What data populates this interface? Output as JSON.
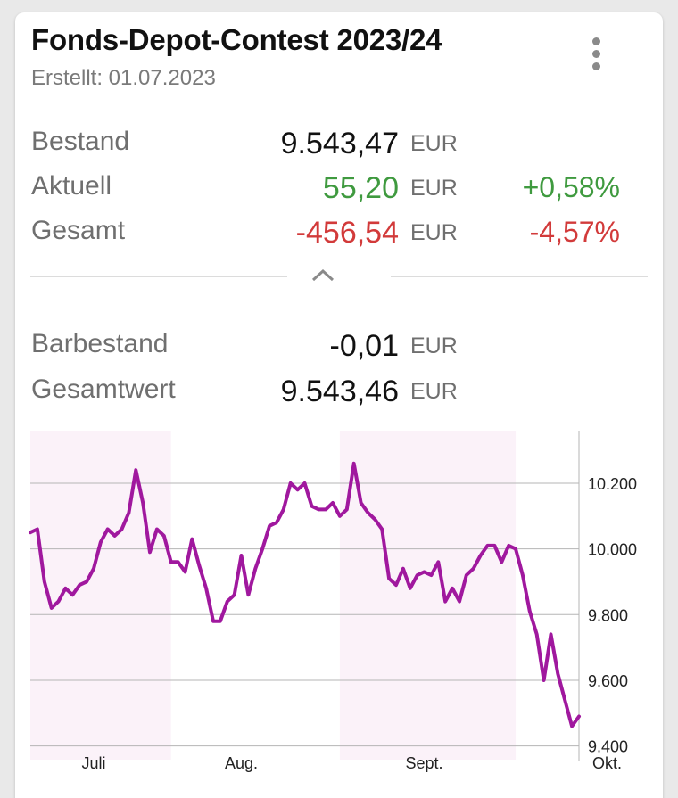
{
  "header": {
    "title": "Fonds-Depot-Contest 2023/24",
    "created": "Erstellt: 01.07.2023"
  },
  "stats": {
    "bestand": {
      "label": "Bestand",
      "value": "9.543,47",
      "currency": "EUR"
    },
    "aktuell": {
      "label": "Aktuell",
      "value": "55,20",
      "currency": "EUR",
      "percent": "+0,58%"
    },
    "gesamt": {
      "label": "Gesamt",
      "value": "-456,54",
      "currency": "EUR",
      "percent": "-4,57%"
    }
  },
  "cash": {
    "barbestand": {
      "label": "Barbestand",
      "value": "-0,01",
      "currency": "EUR"
    },
    "gesamtwert": {
      "label": "Gesamtwert",
      "value": "9.543,46",
      "currency": "EUR"
    }
  },
  "colors": {
    "positive": "#3f9a3f",
    "negative": "#d23a3a",
    "line": "#a0189e",
    "shade": "#fbf2f9"
  },
  "chart_data": {
    "type": "line",
    "title": "",
    "xlabel": "",
    "ylabel": "",
    "ylim": [
      9380,
      10360
    ],
    "yticks": [
      9400,
      9600,
      9800,
      10000,
      10200
    ],
    "ytick_labels": [
      "9.400",
      "9.600",
      "9.800",
      "10.000",
      "10.200"
    ],
    "xtick_labels": [
      "Juli",
      "Aug.",
      "Sept.",
      "Okt."
    ],
    "xtick_index": [
      9,
      30,
      56,
      82
    ],
    "shaded_months": [
      [
        0,
        20
      ],
      [
        44,
        69
      ]
    ],
    "grid": true,
    "series": [
      {
        "values": [
          10050,
          10060,
          9900,
          9820,
          9840,
          9880,
          9860,
          9890,
          9900,
          9940,
          10020,
          10060,
          10040,
          10060,
          10110,
          10240,
          10140,
          9990,
          10060,
          10040,
          9960,
          9960,
          9930,
          10030,
          9950,
          9880,
          9780,
          9780,
          9840,
          9860,
          9980,
          9860,
          9940,
          10000,
          10070,
          10080,
          10120,
          10200,
          10180,
          10200,
          10130,
          10120,
          10120,
          10140,
          10100,
          10120,
          10260,
          10140,
          10110,
          10090,
          10060,
          9910,
          9890,
          9940,
          9880,
          9920,
          9930,
          9920,
          9960,
          9840,
          9880,
          9840,
          9920,
          9940,
          9980,
          10010,
          10010,
          9960,
          10010,
          10000,
          9920,
          9810,
          9740,
          9600,
          9740,
          9620,
          9540,
          9460,
          9490
        ]
      }
    ]
  }
}
